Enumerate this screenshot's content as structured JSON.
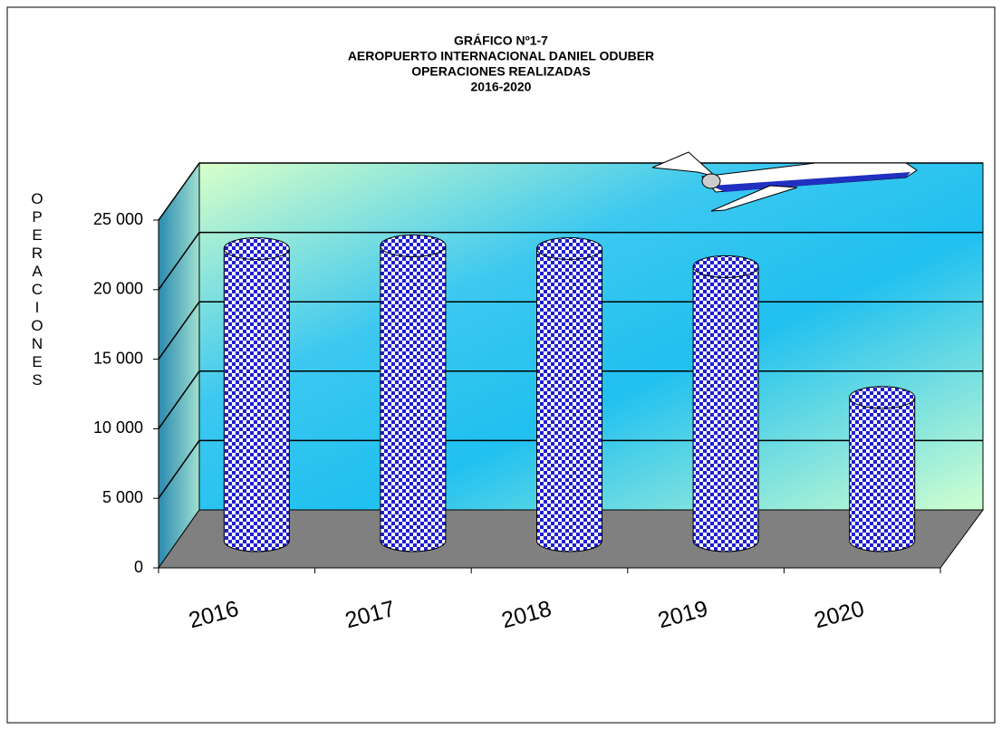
{
  "chart_data": {
    "type": "bar",
    "title": [
      "GRÁFICO Nº1-7",
      "AEROPUERTO INTERNACIONAL DANIEL ODUBER",
      "OPERACIONES REALIZADAS",
      "2016-2020"
    ],
    "y_label": "OPERACIONES",
    "categories": [
      "2016",
      "2017",
      "2018",
      "2019",
      "2020"
    ],
    "values": [
      21000,
      21200,
      21000,
      19700,
      10300
    ],
    "color": "#1f1fd0",
    "ylim": [
      0,
      25000
    ],
    "yticks": [
      0,
      {
        "value": 5000,
        "label": "5 000"
      },
      {
        "value": 10000,
        "label": "10 000"
      },
      {
        "value": 15000,
        "label": "15 000"
      },
      {
        "value": 20000,
        "label": "20 000"
      },
      {
        "value": 25000,
        "label": "25 000"
      }
    ],
    "grid": true
  }
}
